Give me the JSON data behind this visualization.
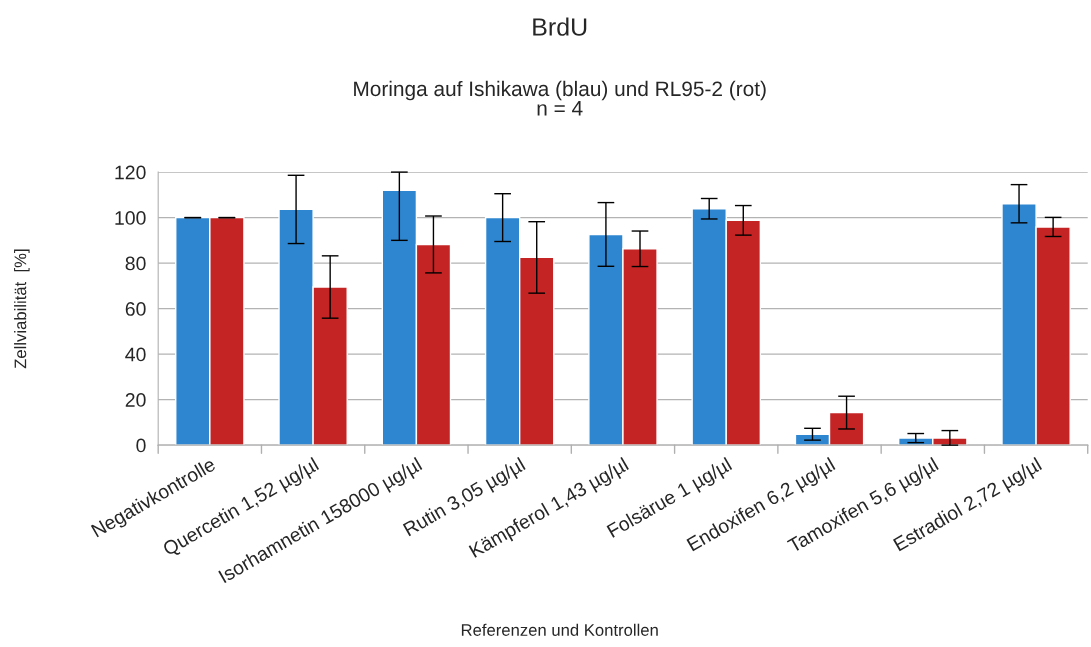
{
  "chart_data": {
    "type": "bar",
    "title": "BrdU",
    "subtitle": "Moringa auf Ishikawa (blau) und RL95-2 (rot)\nn = 4",
    "xlabel": "Referenzen und Kontrollen",
    "ylabel": "Zellviabilität  [%]",
    "categories": [
      "Negativkontrolle",
      "Quercetin 1,52 µg/µl",
      "Isorhamnetin 158000 µg/µl",
      "Rutin 3,05 µg/µl",
      "Kämpferol 1,43 µg/µl",
      "Folsärue 1 µg/µl",
      "Endoxifen 6,2 µg/µl",
      "Tamoxifen 5,6 µg/µl",
      "Estradiol 2,72 µg/µl"
    ],
    "series": [
      {
        "color": "#2e86d0",
        "values": [
          100,
          103.6,
          112,
          100,
          92.6,
          103.9,
          4.8,
          3.1,
          106.1
        ],
        "errors": [
          0,
          15,
          [
            90,
            120
          ],
          10.5,
          14,
          4.5,
          2.6,
          2,
          8.4
        ]
      },
      {
        "color": "#c42424",
        "values": [
          100,
          69.5,
          88.2,
          82.5,
          86.3,
          98.8,
          14.3,
          3.1,
          95.9
        ],
        "errors": [
          0,
          13.7,
          12.5,
          15.7,
          7.8,
          6.5,
          7.2,
          [
            0,
            6.4
          ],
          4.2
        ]
      }
    ],
    "ylim": [
      0,
      120
    ],
    "yticks": [
      0,
      20,
      40,
      60,
      80,
      100,
      120
    ],
    "grid": "y"
  }
}
